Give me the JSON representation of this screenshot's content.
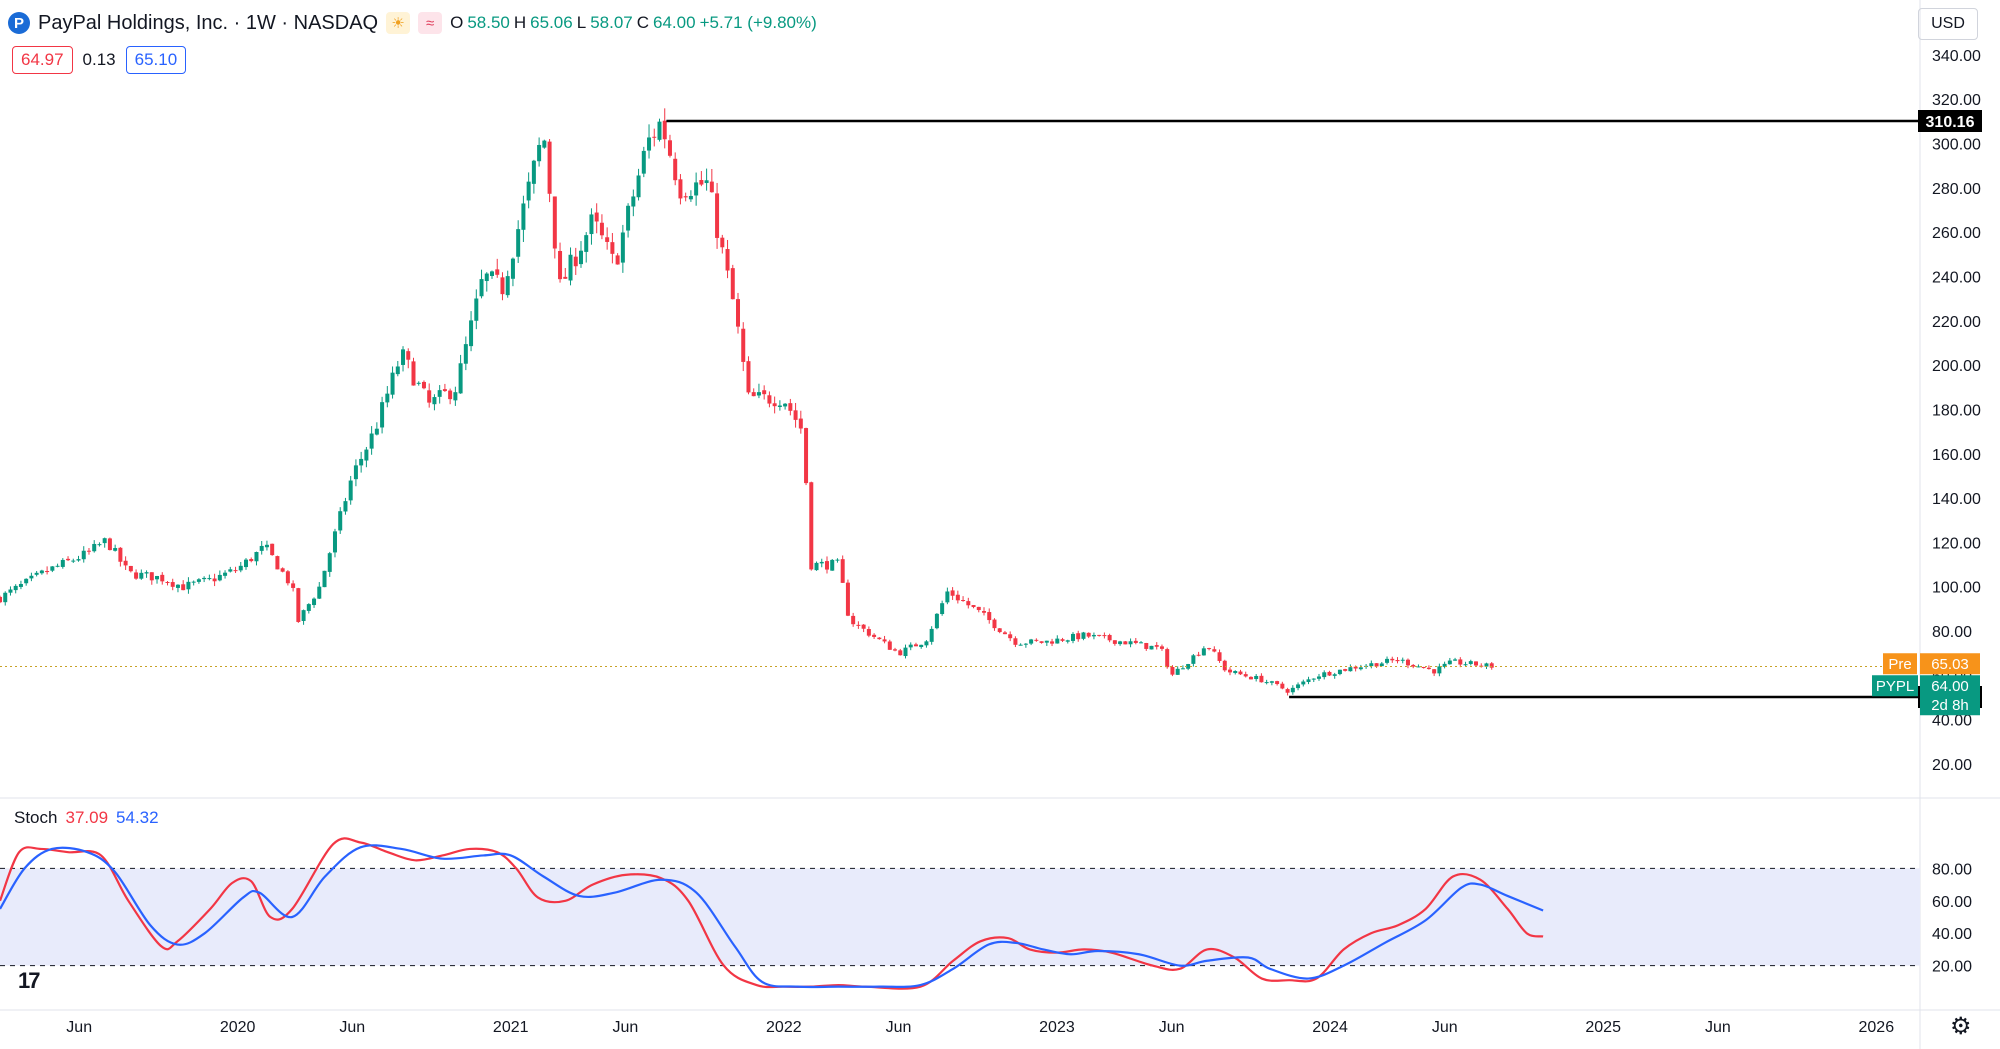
{
  "header": {
    "title": "PayPal Holdings, Inc. · 1W · NASDAQ",
    "ohlc": {
      "o_label": "O",
      "o": "58.50",
      "h_label": "H",
      "h": "65.06",
      "l_label": "L",
      "l": "58.07",
      "c_label": "C",
      "c": "64.00",
      "change": "+5.71 (+9.80%)"
    },
    "bid": "64.97",
    "spread": "0.13",
    "ask": "65.10",
    "currency": "USD"
  },
  "stoch_label": {
    "name": "Stoch",
    "k": "37.09",
    "d": "54.32"
  },
  "colors": {
    "up": "#089981",
    "down": "#f23645",
    "k_line": "#f23645",
    "d_line": "#2962ff",
    "band": "#e8ebfb",
    "grid": "#f0f3fa",
    "axis": "#e0e3eb",
    "pre": "#f7931a",
    "ticker": "#089981",
    "level": "#000000"
  },
  "chart_data": [
    {
      "type": "candlestick",
      "title": "PayPal Holdings, Inc. · 1W · NASDAQ",
      "ylim": [
        0,
        355
      ],
      "y_ticks": [
        20,
        40,
        60,
        80,
        100,
        120,
        140,
        160,
        180,
        200,
        220,
        240,
        260,
        280,
        300,
        320,
        340
      ],
      "x_ticks": [
        {
          "label": "Jun",
          "t": 2019.42
        },
        {
          "label": "2020",
          "t": 2020.0
        },
        {
          "label": "Jun",
          "t": 2020.42
        },
        {
          "label": "2021",
          "t": 2021.0
        },
        {
          "label": "Jun",
          "t": 2021.42
        },
        {
          "label": "2022",
          "t": 2022.0
        },
        {
          "label": "Jun",
          "t": 2022.42
        },
        {
          "label": "2023",
          "t": 2023.0
        },
        {
          "label": "Jun",
          "t": 2023.42
        },
        {
          "label": "2024",
          "t": 2024.0
        },
        {
          "label": "Jun",
          "t": 2024.42
        },
        {
          "label": "2025",
          "t": 2025.0
        },
        {
          "label": "Jun",
          "t": 2025.42
        },
        {
          "label": "2026",
          "t": 2026.0
        }
      ],
      "x_range": [
        2019.13,
        2026.16
      ],
      "price_path": [
        [
          2019.13,
          95
        ],
        [
          2019.3,
          107
        ],
        [
          2019.45,
          115
        ],
        [
          2019.52,
          121
        ],
        [
          2019.6,
          106
        ],
        [
          2019.72,
          104
        ],
        [
          2019.8,
          100
        ],
        [
          2019.9,
          103
        ],
        [
          2020.0,
          108
        ],
        [
          2020.1,
          118
        ],
        [
          2020.2,
          100
        ],
        [
          2020.22,
          84
        ],
        [
          2020.3,
          100
        ],
        [
          2020.42,
          150
        ],
        [
          2020.5,
          170
        ],
        [
          2020.6,
          205
        ],
        [
          2020.7,
          182
        ],
        [
          2020.8,
          190
        ],
        [
          2020.9,
          240
        ],
        [
          2020.97,
          235
        ],
        [
          2021.12,
          305
        ],
        [
          2021.18,
          235
        ],
        [
          2021.3,
          265
        ],
        [
          2021.38,
          245
        ],
        [
          2021.5,
          300
        ],
        [
          2021.55,
          310
        ],
        [
          2021.62,
          280
        ],
        [
          2021.72,
          282
        ],
        [
          2021.82,
          225
        ],
        [
          2021.87,
          185
        ],
        [
          2022.0,
          185
        ],
        [
          2022.07,
          170
        ],
        [
          2022.1,
          110
        ],
        [
          2022.2,
          110
        ],
        [
          2022.24,
          85
        ],
        [
          2022.42,
          70
        ],
        [
          2022.52,
          76
        ],
        [
          2022.6,
          98
        ],
        [
          2022.72,
          88
        ],
        [
          2022.85,
          75
        ],
        [
          2022.95,
          75
        ],
        [
          2023.1,
          78
        ],
        [
          2023.25,
          75
        ],
        [
          2023.38,
          72
        ],
        [
          2023.42,
          60
        ],
        [
          2023.55,
          74
        ],
        [
          2023.62,
          62
        ],
        [
          2023.75,
          58
        ],
        [
          2023.85,
          53
        ],
        [
          2023.95,
          60
        ],
        [
          2024.1,
          64
        ],
        [
          2024.25,
          67
        ],
        [
          2024.38,
          62
        ],
        [
          2024.45,
          66
        ],
        [
          2024.6,
          64
        ]
      ],
      "last_price": 64.0,
      "pre_market": {
        "label": "Pre",
        "value": "65.03"
      },
      "ticker_label": {
        "symbol": "PYPL",
        "value": "64.00",
        "countdown": "2d 8h"
      },
      "levels": [
        {
          "value": 310.16,
          "label": "310.16",
          "t_start": 2021.57
        },
        {
          "value": 50.25,
          "label": "50.25",
          "t_start": 2023.85
        }
      ]
    },
    {
      "type": "line",
      "title": "Stoch",
      "ylim": [
        0,
        100
      ],
      "y_ticks": [
        20,
        40,
        60,
        80
      ],
      "band": [
        20,
        80
      ],
      "series": [
        {
          "name": "K",
          "values_path": [
            [
              2019.13,
              60
            ],
            [
              2019.2,
              90
            ],
            [
              2019.28,
              92
            ],
            [
              2019.38,
              90
            ],
            [
              2019.5,
              88
            ],
            [
              2019.6,
              60
            ],
            [
              2019.72,
              32
            ],
            [
              2019.78,
              35
            ],
            [
              2019.9,
              55
            ],
            [
              2019.98,
              71
            ],
            [
              2020.05,
              72
            ],
            [
              2020.12,
              50
            ],
            [
              2020.2,
              55
            ],
            [
              2020.35,
              95
            ],
            [
              2020.45,
              96
            ],
            [
              2020.55,
              90
            ],
            [
              2020.65,
              85
            ],
            [
              2020.75,
              88
            ],
            [
              2020.85,
              92
            ],
            [
              2020.95,
              90
            ],
            [
              2021.02,
              80
            ],
            [
              2021.1,
              62
            ],
            [
              2021.2,
              60
            ],
            [
              2021.3,
              70
            ],
            [
              2021.42,
              76
            ],
            [
              2021.55,
              74
            ],
            [
              2021.65,
              60
            ],
            [
              2021.78,
              20
            ],
            [
              2021.9,
              8
            ],
            [
              2022.0,
              7
            ],
            [
              2022.1,
              7
            ],
            [
              2022.2,
              8
            ],
            [
              2022.3,
              7
            ],
            [
              2022.5,
              7
            ],
            [
              2022.62,
              23
            ],
            [
              2022.72,
              35
            ],
            [
              2022.82,
              37
            ],
            [
              2022.9,
              30
            ],
            [
              2023.0,
              28
            ],
            [
              2023.1,
              30
            ],
            [
              2023.2,
              28
            ],
            [
              2023.35,
              20
            ],
            [
              2023.45,
              18
            ],
            [
              2023.55,
              30
            ],
            [
              2023.65,
              25
            ],
            [
              2023.75,
              12
            ],
            [
              2023.85,
              11
            ],
            [
              2023.95,
              12
            ],
            [
              2024.05,
              30
            ],
            [
              2024.15,
              40
            ],
            [
              2024.25,
              45
            ],
            [
              2024.35,
              55
            ],
            [
              2024.45,
              75
            ],
            [
              2024.55,
              73
            ],
            [
              2024.65,
              55
            ],
            [
              2024.72,
              40
            ],
            [
              2024.78,
              38
            ]
          ]
        },
        {
          "name": "D",
          "values_path": [
            [
              2019.13,
              55
            ],
            [
              2019.22,
              80
            ],
            [
              2019.32,
              92
            ],
            [
              2019.45,
              90
            ],
            [
              2019.55,
              78
            ],
            [
              2019.68,
              45
            ],
            [
              2019.78,
              33
            ],
            [
              2019.88,
              40
            ],
            [
              2020.02,
              62
            ],
            [
              2020.08,
              65
            ],
            [
              2020.2,
              50
            ],
            [
              2020.32,
              75
            ],
            [
              2020.45,
              93
            ],
            [
              2020.6,
              92
            ],
            [
              2020.75,
              86
            ],
            [
              2020.9,
              88
            ],
            [
              2021.0,
              88
            ],
            [
              2021.12,
              75
            ],
            [
              2021.25,
              63
            ],
            [
              2021.38,
              65
            ],
            [
              2021.55,
              73
            ],
            [
              2021.68,
              65
            ],
            [
              2021.82,
              32
            ],
            [
              2021.92,
              10
            ],
            [
              2022.05,
              7
            ],
            [
              2022.2,
              7
            ],
            [
              2022.35,
              7
            ],
            [
              2022.5,
              8
            ],
            [
              2022.62,
              18
            ],
            [
              2022.75,
              33
            ],
            [
              2022.85,
              34
            ],
            [
              2022.95,
              30
            ],
            [
              2023.05,
              27
            ],
            [
              2023.15,
              29
            ],
            [
              2023.3,
              27
            ],
            [
              2023.45,
              20
            ],
            [
              2023.55,
              23
            ],
            [
              2023.7,
              25
            ],
            [
              2023.78,
              18
            ],
            [
              2023.92,
              12
            ],
            [
              2024.05,
              20
            ],
            [
              2024.2,
              34
            ],
            [
              2024.35,
              48
            ],
            [
              2024.48,
              68
            ],
            [
              2024.55,
              70
            ],
            [
              2024.65,
              63
            ],
            [
              2024.78,
              54
            ]
          ]
        }
      ]
    }
  ]
}
